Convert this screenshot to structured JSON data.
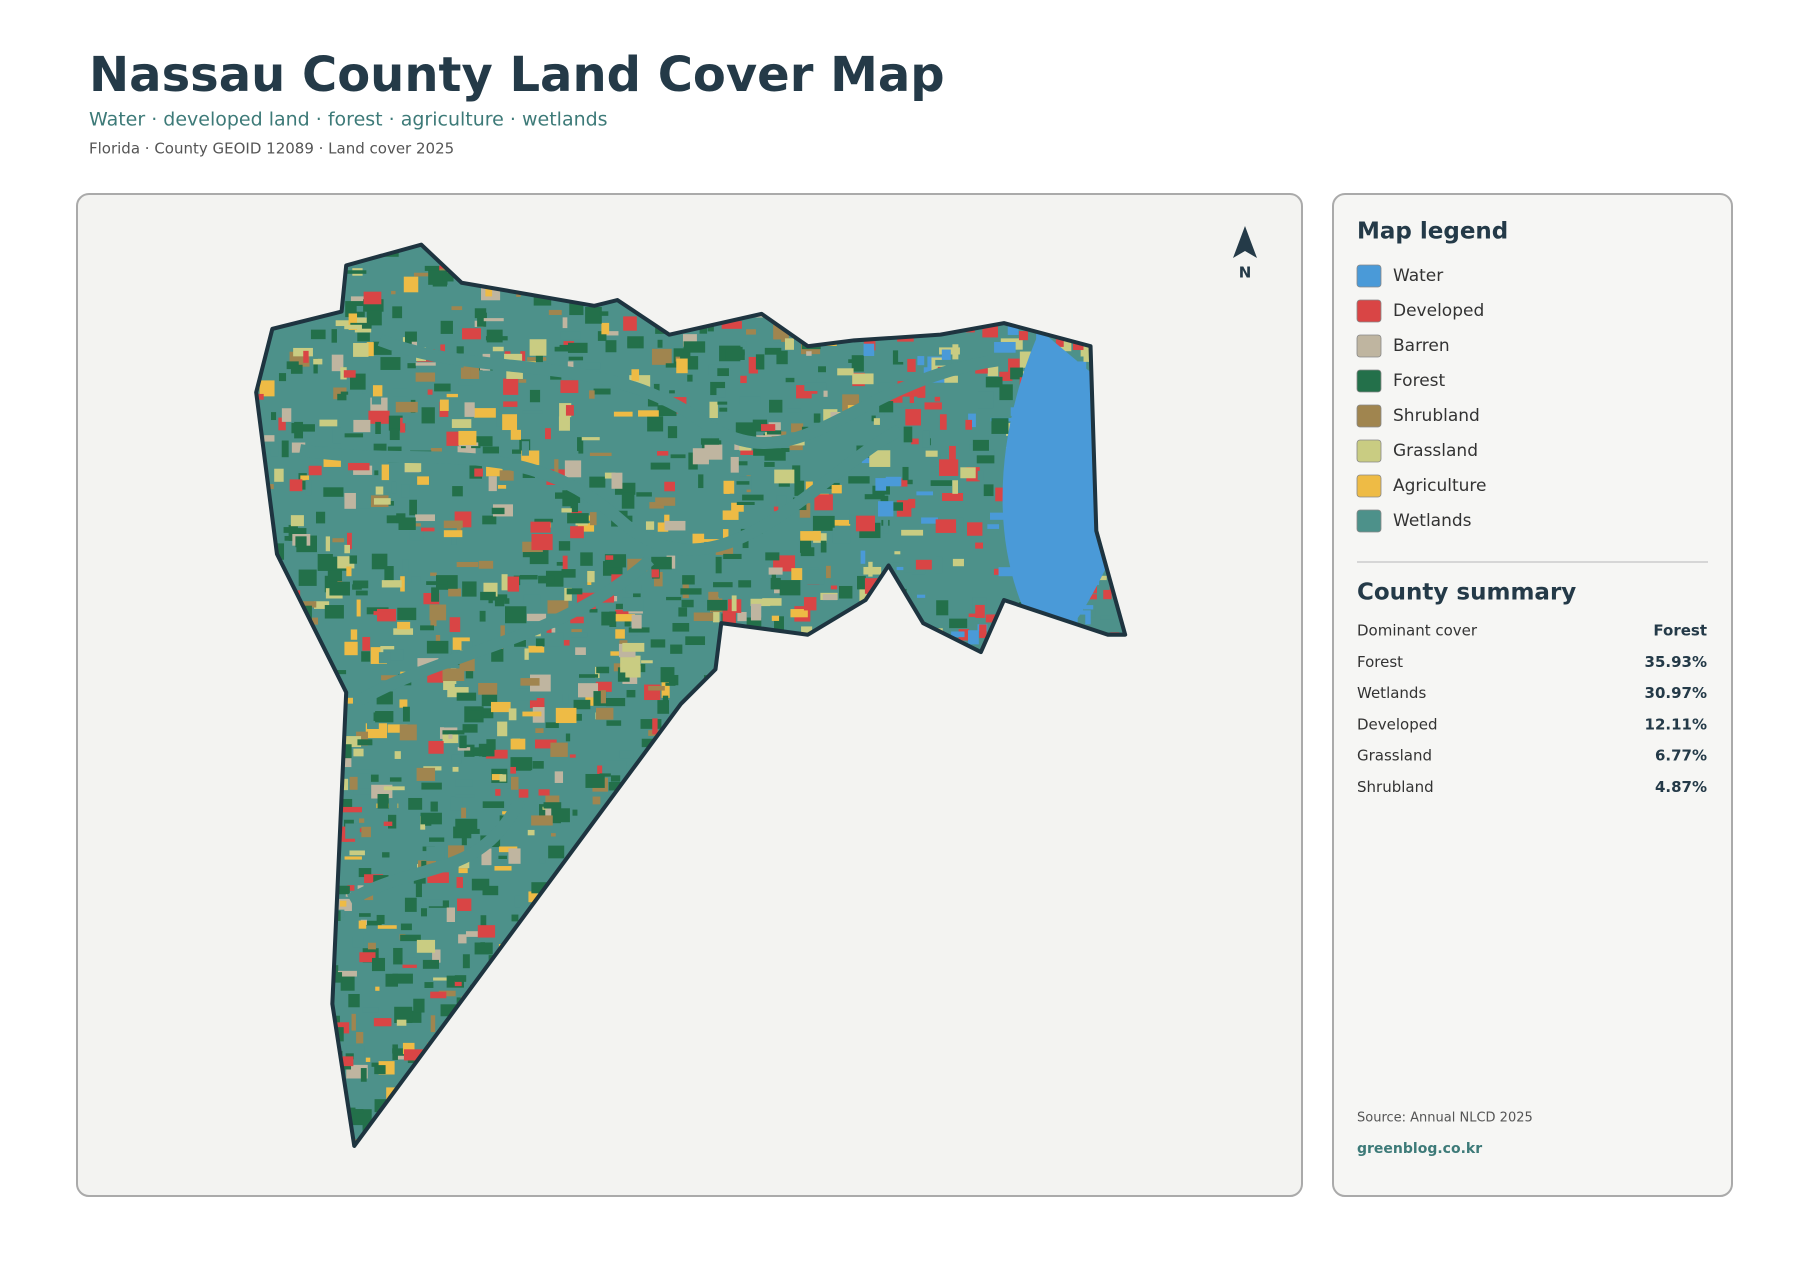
{
  "header": {
    "title": "Nassau County Land Cover Map",
    "subtitle": "Water · developed land · forest · agriculture · wetlands",
    "meta": "Florida · County GEOID 12089 · Land cover 2025"
  },
  "map": {
    "north_label": "N"
  },
  "legend": {
    "title": "Map legend",
    "items": [
      {
        "label": "Water",
        "color": "#4a9ad8"
      },
      {
        "label": "Developed",
        "color": "#d94545"
      },
      {
        "label": "Barren",
        "color": "#bfb5a0"
      },
      {
        "label": "Forest",
        "color": "#23704a"
      },
      {
        "label": "Shrubland",
        "color": "#a0854f"
      },
      {
        "label": "Grassland",
        "color": "#c9cc82"
      },
      {
        "label": "Agriculture",
        "color": "#eebb45"
      },
      {
        "label": "Wetlands",
        "color": "#4d918a"
      }
    ]
  },
  "summary": {
    "title": "County summary",
    "rows": [
      {
        "label": "Dominant cover",
        "value": "Forest"
      },
      {
        "label": "Forest",
        "value": "35.93%"
      },
      {
        "label": "Wetlands",
        "value": "30.97%"
      },
      {
        "label": "Developed",
        "value": "12.11%"
      },
      {
        "label": "Grassland",
        "value": "6.77%"
      },
      {
        "label": "Shrubland",
        "value": "4.87%"
      }
    ]
  },
  "footer": {
    "source": "Source: Annual NLCD 2025",
    "site": "greenblog.co.kr"
  }
}
